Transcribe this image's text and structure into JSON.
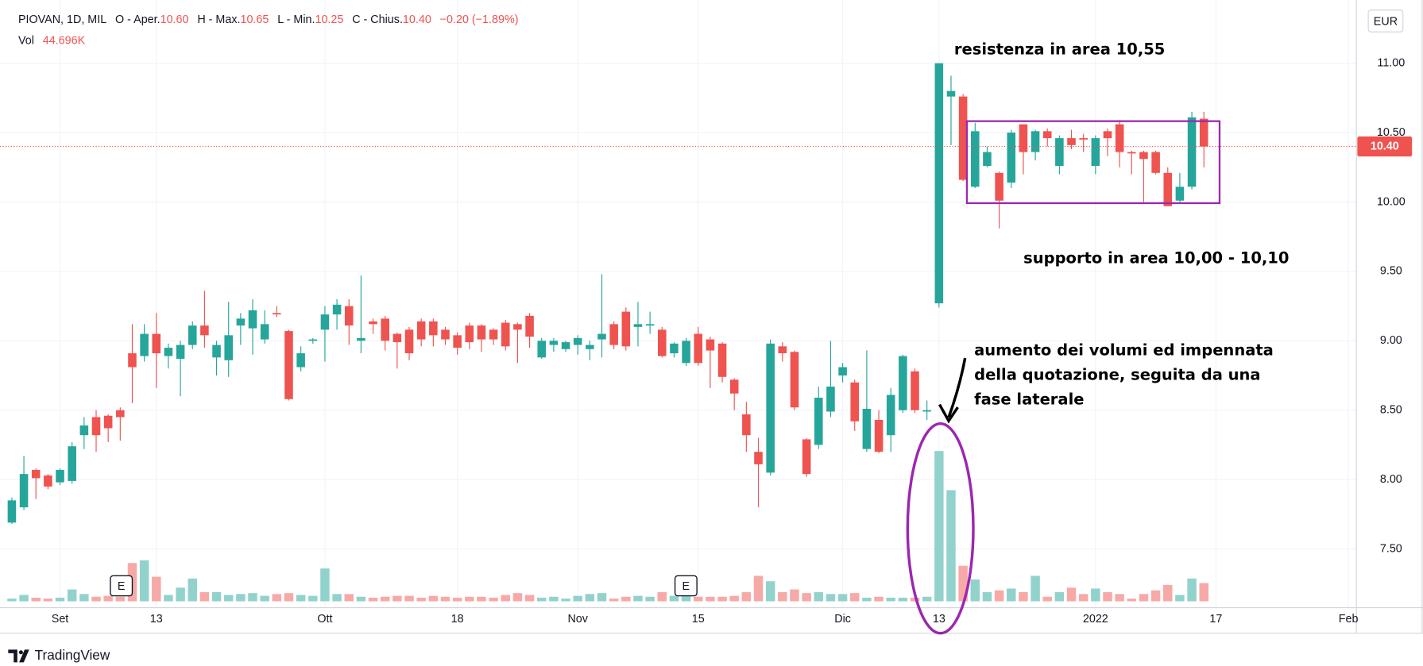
{
  "chart_data": {
    "type": "candlestick",
    "legend": {
      "symbol": "PIOVAN, 1D, MIL",
      "open_label": "O - Aper.",
      "open": "10.60",
      "high_label": "H - Max.",
      "high": "10.65",
      "low_label": "L - Min.",
      "low": "10.25",
      "close_label": "C - Chius.",
      "close": "10.40",
      "change": "−0.20 (−1.89%)",
      "volume_label": "Vol",
      "volume": "44.696K"
    },
    "currency": "EUR",
    "categories": [
      null,
      null,
      null,
      null,
      "Set",
      null,
      null,
      null,
      null,
      null,
      null,
      null,
      "13",
      null,
      null,
      null,
      null,
      null,
      null,
      null,
      null,
      null,
      null,
      null,
      null,
      null,
      "Ott",
      null,
      null,
      null,
      null,
      null,
      null,
      null,
      null,
      null,
      null,
      "18",
      null,
      null,
      null,
      null,
      null,
      null,
      null,
      null,
      null,
      "Nov",
      null,
      null,
      null,
      null,
      null,
      null,
      null,
      null,
      null,
      "15",
      null,
      null,
      null,
      null,
      null,
      null,
      null,
      null,
      null,
      null,
      null,
      "Dic",
      null,
      null,
      null,
      null,
      null,
      null,
      null,
      "13",
      null,
      null,
      null,
      null,
      null,
      null,
      null,
      null,
      null,
      null,
      null,
      null,
      "2022",
      null,
      null,
      null,
      null,
      null,
      null,
      null,
      null,
      null,
      "17",
      null,
      null,
      null,
      null,
      null,
      null,
      null,
      null,
      null,
      null,
      "Feb"
    ],
    "open": [
      7.69,
      7.8,
      8.07,
      8.03,
      7.98,
      7.99,
      8.32,
      8.45,
      8.46,
      8.5,
      8.91,
      8.89,
      9.05,
      8.89,
      8.87,
      8.97,
      9.11,
      8.88,
      8.86,
      9.11,
      9.09,
      9.01,
      9.2,
      9.07,
      8.81,
      9.0,
      9.08,
      9.19,
      9.25,
      9.0,
      9.14,
      9.16,
      9.05,
      9.08,
      9.14,
      9.14,
      9.08,
      9.04,
      9.11,
      9.11,
      9.08,
      9.13,
      9.12,
      9.18,
      8.88,
      8.97,
      8.94,
      8.97,
      8.94,
      9.01,
      9.12,
      9.21,
      9.1,
      9.11,
      9.08,
      8.91,
      8.84,
      9.05,
      9.01,
      8.98,
      8.72,
      8.47,
      8.2,
      8.05,
      8.96,
      8.92,
      8.29,
      8.25,
      8.49,
      8.75,
      8.7,
      8.22,
      8.43,
      8.32,
      8.5,
      8.78,
      8.49,
      9.27,
      10.76,
      10.76,
      10.11,
      10.26,
      10.21,
      10.14,
      10.56,
      10.36,
      10.51,
      10.26,
      10.46,
      10.46,
      10.26,
      10.51,
      10.56,
      10.36,
      10.36,
      10.36,
      10.21,
      10.01,
      10.11,
      10.6,
      null,
      null,
      null,
      null,
      null,
      null,
      null,
      null,
      null,
      null,
      null,
      null
    ],
    "high": [
      7.87,
      8.17,
      8.08,
      8.04,
      8.08,
      8.27,
      8.45,
      8.5,
      8.47,
      8.52,
      9.12,
      9.12,
      9.2,
      8.98,
      9.0,
      9.14,
      9.36,
      9.0,
      9.28,
      9.2,
      9.3,
      9.22,
      9.25,
      9.08,
      8.96,
      9.02,
      9.25,
      9.3,
      9.3,
      9.47,
      9.16,
      9.18,
      9.06,
      9.1,
      9.16,
      9.16,
      9.1,
      9.06,
      9.13,
      9.12,
      9.09,
      9.15,
      9.13,
      9.2,
      9.02,
      9.02,
      9.0,
      9.04,
      9.0,
      9.48,
      9.14,
      9.24,
      9.28,
      9.21,
      9.1,
      8.99,
      9.02,
      9.1,
      9.03,
      8.99,
      8.73,
      8.56,
      8.3,
      9.01,
      8.99,
      8.93,
      8.3,
      8.67,
      9.0,
      8.84,
      8.72,
      8.93,
      8.5,
      8.66,
      8.9,
      8.8,
      8.57,
      11.0,
      10.91,
      10.78,
      10.57,
      10.4,
      10.22,
      10.52,
      10.56,
      10.52,
      10.53,
      10.48,
      10.52,
      10.49,
      10.48,
      10.53,
      10.59,
      10.37,
      10.37,
      10.37,
      10.25,
      10.21,
      10.65,
      10.65,
      null,
      null,
      null,
      null,
      null,
      null,
      null,
      null,
      null,
      null,
      null,
      null
    ],
    "low": [
      7.68,
      7.78,
      7.86,
      7.93,
      7.96,
      7.97,
      8.22,
      8.2,
      8.27,
      8.28,
      8.55,
      8.85,
      8.66,
      8.8,
      8.6,
      8.94,
      8.95,
      8.75,
      8.74,
      8.97,
      8.9,
      8.98,
      9.17,
      8.57,
      8.78,
      8.98,
      8.85,
      9.08,
      8.97,
      8.91,
      9.05,
      8.93,
      8.8,
      8.86,
      8.96,
      8.96,
      8.97,
      8.9,
      8.94,
      8.92,
      8.97,
      8.93,
      8.84,
      8.95,
      8.87,
      8.92,
      8.92,
      8.9,
      8.86,
      8.88,
      8.94,
      8.93,
      8.96,
      9.05,
      8.88,
      8.88,
      8.82,
      8.82,
      8.66,
      8.7,
      8.5,
      8.2,
      7.8,
      8.03,
      8.85,
      8.5,
      8.02,
      8.22,
      8.45,
      8.7,
      8.35,
      8.2,
      8.19,
      8.2,
      8.48,
      8.48,
      8.43,
      9.24,
      10.41,
      10.15,
      10.1,
      10.25,
      9.81,
      10.1,
      10.2,
      10.3,
      10.4,
      10.2,
      10.38,
      10.36,
      10.2,
      10.33,
      10.25,
      10.2,
      10.0,
      10.2,
      9.97,
      10.0,
      10.09,
      10.25,
      null,
      null,
      null,
      null,
      null,
      null,
      null,
      null,
      null,
      null,
      null,
      null
    ],
    "close": [
      7.85,
      8.04,
      8.01,
      7.95,
      8.07,
      8.24,
      8.39,
      8.32,
      8.37,
      8.45,
      8.81,
      9.05,
      8.91,
      8.95,
      8.97,
      9.11,
      9.04,
      8.97,
      9.04,
      9.16,
      9.22,
      9.12,
      9.19,
      8.58,
      8.91,
      9.01,
      9.19,
      9.26,
      9.11,
      9.02,
      9.12,
      9.0,
      8.99,
      8.91,
      9.01,
      9.04,
      9.01,
      8.95,
      8.99,
      9.01,
      9.01,
      8.96,
      9.08,
      9.03,
      9.0,
      9.0,
      8.99,
      9.02,
      8.97,
      9.05,
      8.97,
      8.96,
      9.12,
      9.12,
      8.89,
      8.98,
      9.0,
      8.84,
      8.93,
      8.74,
      8.62,
      8.32,
      8.11,
      8.98,
      8.91,
      8.52,
      8.04,
      8.59,
      8.67,
      8.81,
      8.42,
      8.51,
      8.2,
      8.61,
      8.89,
      8.5,
      8.5,
      11.0,
      10.8,
      10.16,
      10.51,
      10.36,
      10.01,
      10.5,
      10.36,
      10.51,
      10.46,
      10.46,
      10.41,
      10.45,
      10.46,
      10.46,
      10.36,
      10.35,
      10.31,
      10.21,
      9.97,
      10.11,
      10.61,
      10.4,
      null,
      null,
      null,
      null,
      null,
      null,
      null,
      null,
      null,
      null,
      null,
      null
    ],
    "volume": [
      6700,
      15600,
      8900,
      6700,
      8900,
      29100,
      17900,
      11200,
      13400,
      11200,
      93900,
      100600,
      60300,
      15600,
      33500,
      55900,
      22400,
      22400,
      15600,
      17900,
      20100,
      13400,
      17900,
      20100,
      15600,
      13400,
      80500,
      17900,
      17900,
      11200,
      8900,
      11200,
      13400,
      13400,
      8900,
      13400,
      11200,
      8900,
      11200,
      11200,
      8900,
      15600,
      20100,
      15600,
      8900,
      11200,
      6700,
      13400,
      17900,
      20100,
      6700,
      11200,
      13400,
      11200,
      22400,
      13400,
      15600,
      11200,
      11200,
      11200,
      13400,
      22400,
      62600,
      49200,
      22400,
      29100,
      20100,
      22400,
      17900,
      17900,
      20100,
      8900,
      11200,
      8900,
      8900,
      8900,
      11200,
      368800,
      272700,
      87200,
      53600,
      22400,
      26800,
      31300,
      22400,
      62600,
      11200,
      22400,
      33500,
      17900,
      31300,
      22400,
      17900,
      6700,
      17900,
      26800,
      40200,
      15600,
      55900,
      44696,
      null,
      null,
      null,
      null,
      null,
      null,
      null,
      null,
      null,
      null,
      null,
      null
    ],
    "up_color": "#26a69a",
    "down_color": "#ef5350",
    "up_volume_color": "#92d2cc",
    "down_volume_color": "#f7a9a7",
    "ylim": [
      7.09,
      11.39
    ],
    "yticks": [
      {
        "value": 7.5,
        "label": "7.50"
      },
      {
        "value": 8,
        "label": "8.00"
      },
      {
        "value": 8.5,
        "label": "8.50"
      },
      {
        "value": 9,
        "label": "9.00"
      },
      {
        "value": 9.5,
        "label": "9.50"
      },
      {
        "value": 10,
        "label": "10.00"
      },
      {
        "value": 10.5,
        "label": "10.50"
      },
      {
        "value": 11,
        "label": "11.00"
      }
    ],
    "last_price": {
      "value": 10.4,
      "label": "10.40"
    },
    "grid": true,
    "annotations": {
      "resistance": "resistenza in area 10,55",
      "support": "supporto in area 10,00 - 10,10",
      "volume_note": [
        "aumento dei volumi ed impennata",
        "della quotazione, seguita da una",
        "fase laterale"
      ]
    },
    "events": [
      "E",
      "E"
    ],
    "brand": "TradingView"
  }
}
